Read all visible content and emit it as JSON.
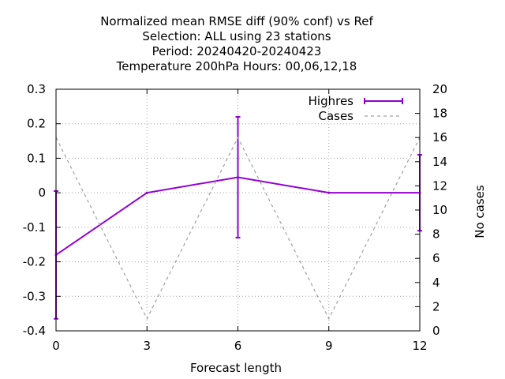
{
  "chart_data": {
    "type": "line",
    "title_lines": [
      "Normalized mean RMSE diff (90% conf) vs Ref",
      "Selection: ALL using    23 stations",
      "Period: 20240420-20240423",
      "Temperature 200hPa   Hours:  00,06,12,18"
    ],
    "xlabel": "Forecast length",
    "ylabel": "",
    "y2label": "No cases",
    "x": [
      0,
      3,
      6,
      9,
      12
    ],
    "xlim": [
      0,
      12
    ],
    "ylim": [
      -0.4,
      0.3
    ],
    "y2lim": [
      0,
      20
    ],
    "xticks": [
      "0",
      "3",
      "6",
      "9",
      "12"
    ],
    "yticks": [
      "-0.4",
      "-0.3",
      "-0.2",
      "-0.1",
      "0",
      "0.1",
      "0.2",
      "0.3"
    ],
    "y2ticks": [
      "0",
      "2",
      "4",
      "6",
      "8",
      "10",
      "12",
      "14",
      "16",
      "18",
      "20"
    ],
    "grid": true,
    "legend_position": "top-right",
    "series": [
      {
        "name": "Highres",
        "axis": "y",
        "color": "#9400d3",
        "style": "line with error bars",
        "values": [
          -0.18,
          0.0,
          0.045,
          0.0,
          0.0
        ],
        "err_low": [
          -0.365,
          0.0,
          -0.13,
          0.0,
          -0.11
        ],
        "err_high": [
          0.005,
          0.0,
          0.22,
          0.0,
          0.11
        ]
      },
      {
        "name": "Cases",
        "axis": "y2",
        "color": "#a0a0a0",
        "style": "dashed",
        "values": [
          16,
          1,
          16,
          1,
          16
        ]
      }
    ]
  }
}
